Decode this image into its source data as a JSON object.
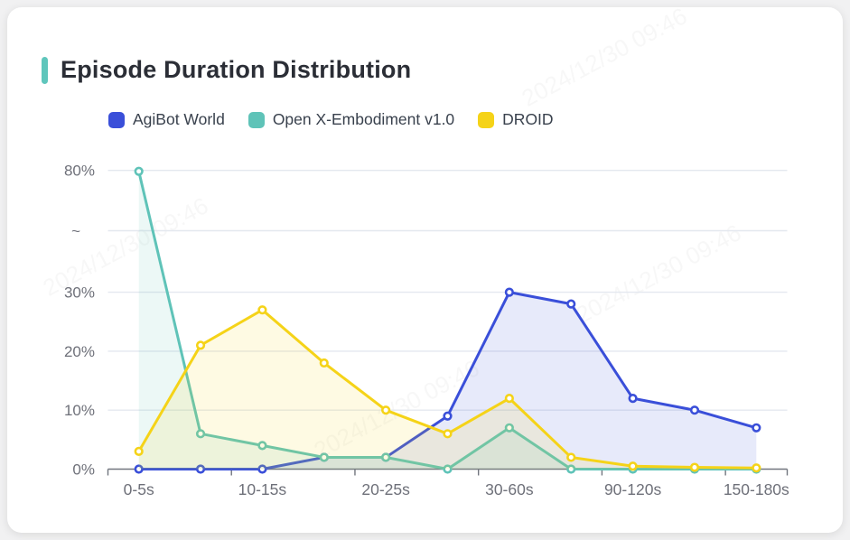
{
  "page_title": "Episode Duration Distribution",
  "title_accent_color": "#5FC6BC",
  "watermark": "2024/12/30 09:46",
  "legend": [
    {
      "label": "AgiBot World",
      "color": "#3A4FD9"
    },
    {
      "label": "Open X-Embodiment v1.0",
      "color": "#5FC3B8"
    },
    {
      "label": "DROID",
      "color": "#F5D318"
    }
  ],
  "chart_data": {
    "type": "line",
    "title": "Episode Duration Distribution",
    "x_axis": {
      "num_points": 11,
      "labels": [
        {
          "i": 0,
          "t": "0-5s"
        },
        {
          "i": 2,
          "t": "10-15s"
        },
        {
          "i": 4,
          "t": "20-25s"
        },
        {
          "i": 6,
          "t": "30-60s"
        },
        {
          "i": 8,
          "t": "90-120s"
        },
        {
          "i": 10,
          "t": "150-180s"
        }
      ]
    },
    "y_axis": {
      "unit": "%",
      "broken_axis": true,
      "break_between": [
        30,
        80
      ],
      "ticks": [
        {
          "label": "0%",
          "v": 0
        },
        {
          "label": "10%",
          "v": 10
        },
        {
          "label": "20%",
          "v": 20
        },
        {
          "label": "30%",
          "v": 30
        },
        {
          "label": "~",
          "v": "break"
        },
        {
          "label": "80%",
          "v": 80
        }
      ]
    },
    "series": [
      {
        "name": "AgiBot World",
        "color": "#3A4FD9",
        "values": [
          0,
          0,
          0,
          2,
          2,
          9,
          30,
          28,
          12,
          10,
          7
        ]
      },
      {
        "name": "Open X-Embodiment v1.0",
        "color": "#5FC3B8",
        "values": [
          79.6,
          6,
          4,
          2,
          2,
          0,
          7,
          0,
          0,
          0,
          0
        ]
      },
      {
        "name": "DROID",
        "color": "#F5D318",
        "values": [
          3,
          21,
          27,
          18,
          10,
          6,
          12,
          2,
          0.5,
          0.3,
          0.2
        ]
      }
    ],
    "grid": true,
    "legend_position": "top",
    "area_fill": true,
    "markers": "hollow-circle"
  }
}
